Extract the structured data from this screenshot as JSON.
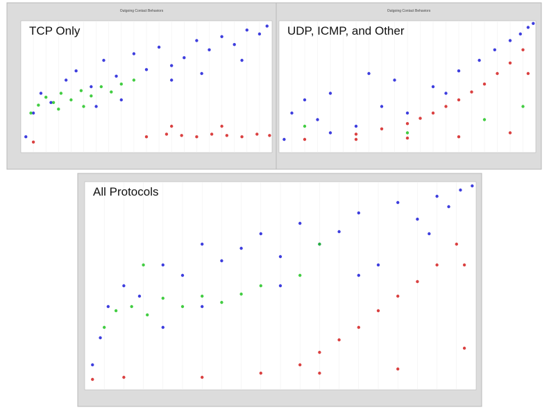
{
  "chart_data": [
    {
      "type": "scatter",
      "title": "TCP Only",
      "header": "Outgoing Contact Behaviors",
      "xlim": [
        0,
        1
      ],
      "ylim": [
        0,
        1
      ],
      "series": [
        {
          "color": "#1c1cd8",
          "x": [
            0.02,
            0.05,
            0.08,
            0.12,
            0.18,
            0.22,
            0.28,
            0.33,
            0.38,
            0.45,
            0.5,
            0.55,
            0.6,
            0.65,
            0.7,
            0.75,
            0.8,
            0.85,
            0.9,
            0.95,
            0.98,
            0.3,
            0.4,
            0.6,
            0.72,
            0.88
          ],
          "values": [
            0.12,
            0.3,
            0.45,
            0.38,
            0.55,
            0.62,
            0.5,
            0.7,
            0.58,
            0.75,
            0.63,
            0.8,
            0.66,
            0.72,
            0.85,
            0.78,
            0.88,
            0.82,
            0.93,
            0.9,
            0.96,
            0.35,
            0.4,
            0.55,
            0.6,
            0.7
          ]
        },
        {
          "color": "#22c422",
          "x": [
            0.04,
            0.07,
            0.1,
            0.13,
            0.16,
            0.2,
            0.24,
            0.28,
            0.32,
            0.36,
            0.4,
            0.45,
            0.15,
            0.25
          ],
          "values": [
            0.3,
            0.36,
            0.42,
            0.38,
            0.45,
            0.4,
            0.47,
            0.43,
            0.5,
            0.46,
            0.52,
            0.55,
            0.33,
            0.35
          ]
        },
        {
          "color": "#d42020",
          "x": [
            0.05,
            0.5,
            0.58,
            0.64,
            0.7,
            0.76,
            0.82,
            0.88,
            0.94,
            0.99,
            0.6,
            0.8
          ],
          "values": [
            0.08,
            0.12,
            0.14,
            0.13,
            0.12,
            0.14,
            0.13,
            0.12,
            0.14,
            0.13,
            0.2,
            0.2
          ]
        }
      ]
    },
    {
      "type": "scatter",
      "title": "UDP, ICMP, and Other",
      "header": "Outgoing Contact Behaviors",
      "xlim": [
        0,
        1
      ],
      "ylim": [
        0,
        1
      ],
      "series": [
        {
          "color": "#1c1cd8",
          "x": [
            0.02,
            0.05,
            0.1,
            0.15,
            0.2,
            0.3,
            0.4,
            0.5,
            0.6,
            0.7,
            0.78,
            0.84,
            0.9,
            0.94,
            0.97,
            0.99,
            0.2,
            0.45,
            0.65,
            0.35
          ],
          "values": [
            0.1,
            0.3,
            0.4,
            0.25,
            0.45,
            0.2,
            0.35,
            0.3,
            0.5,
            0.62,
            0.7,
            0.78,
            0.85,
            0.9,
            0.95,
            0.98,
            0.15,
            0.55,
            0.45,
            0.6
          ]
        },
        {
          "color": "#d42020",
          "x": [
            0.3,
            0.4,
            0.5,
            0.55,
            0.6,
            0.65,
            0.7,
            0.75,
            0.8,
            0.85,
            0.9,
            0.95,
            0.97,
            0.1,
            0.3,
            0.5,
            0.7,
            0.9
          ],
          "values": [
            0.14,
            0.18,
            0.22,
            0.26,
            0.3,
            0.35,
            0.4,
            0.46,
            0.52,
            0.6,
            0.68,
            0.78,
            0.6,
            0.1,
            0.1,
            0.11,
            0.12,
            0.15
          ]
        },
        {
          "color": "#22c422",
          "x": [
            0.1,
            0.5,
            0.8,
            0.95
          ],
          "values": [
            0.2,
            0.15,
            0.25,
            0.35
          ]
        }
      ]
    },
    {
      "type": "scatter",
      "title": "All Protocols",
      "xlim": [
        0,
        1
      ],
      "ylim": [
        0,
        1
      ],
      "series": [
        {
          "color": "#1c1cd8",
          "x": [
            0.02,
            0.04,
            0.06,
            0.1,
            0.14,
            0.2,
            0.25,
            0.3,
            0.35,
            0.4,
            0.45,
            0.5,
            0.55,
            0.6,
            0.65,
            0.7,
            0.75,
            0.8,
            0.85,
            0.9,
            0.93,
            0.96,
            0.99,
            0.3,
            0.5,
            0.7,
            0.88,
            0.2
          ],
          "values": [
            0.12,
            0.25,
            0.4,
            0.5,
            0.45,
            0.6,
            0.55,
            0.7,
            0.62,
            0.68,
            0.75,
            0.64,
            0.8,
            0.7,
            0.76,
            0.85,
            0.6,
            0.9,
            0.82,
            0.93,
            0.88,
            0.96,
            0.98,
            0.4,
            0.5,
            0.55,
            0.75,
            0.3
          ]
        },
        {
          "color": "#22c422",
          "x": [
            0.05,
            0.08,
            0.12,
            0.16,
            0.2,
            0.25,
            0.3,
            0.35,
            0.4,
            0.45,
            0.15,
            0.55,
            0.6
          ],
          "values": [
            0.3,
            0.38,
            0.4,
            0.36,
            0.44,
            0.4,
            0.45,
            0.42,
            0.46,
            0.5,
            0.6,
            0.55,
            0.7
          ]
        },
        {
          "color": "#d42020",
          "x": [
            0.02,
            0.1,
            0.3,
            0.45,
            0.55,
            0.6,
            0.65,
            0.7,
            0.75,
            0.8,
            0.85,
            0.9,
            0.95,
            0.97,
            0.6,
            0.8,
            0.97
          ],
          "values": [
            0.05,
            0.06,
            0.06,
            0.08,
            0.12,
            0.18,
            0.24,
            0.3,
            0.38,
            0.45,
            0.52,
            0.6,
            0.7,
            0.6,
            0.08,
            0.1,
            0.2
          ]
        }
      ]
    }
  ]
}
